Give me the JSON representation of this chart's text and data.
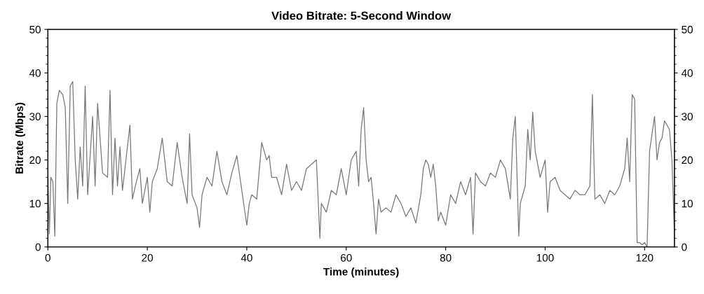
{
  "chart_data": {
    "type": "line",
    "title": "Video Bitrate: 5-Second Window",
    "xlabel": "Time (minutes)",
    "ylabel": "Bitrate (Mbps)",
    "xlim": [
      0,
      126
    ],
    "xticks": [
      0,
      20,
      40,
      60,
      80,
      100,
      120
    ],
    "ylim": [
      0,
      50
    ],
    "yticks": [
      0,
      10,
      20,
      30,
      40,
      50
    ],
    "y2lim": [
      0,
      50
    ],
    "y2ticks": [
      0,
      10,
      20,
      30,
      40,
      50
    ],
    "grid": false,
    "marker": "none",
    "line_style": "solid",
    "series": [
      {
        "color": "#777777",
        "x": [
          0,
          0.3,
          0.6,
          1,
          1.4,
          1.8,
          2.3,
          3,
          3.5,
          4,
          4.5,
          5,
          5.5,
          6,
          6.5,
          7,
          7.5,
          8,
          9,
          9.5,
          10,
          11,
          12,
          12.5,
          13,
          13.5,
          14,
          14.5,
          15,
          16.5,
          17,
          17.8,
          18.5,
          19,
          20,
          20.5,
          21,
          22,
          23,
          24,
          25,
          26,
          27,
          28,
          28.5,
          29,
          30,
          30.5,
          31,
          32,
          33,
          34,
          35,
          36,
          37,
          38,
          39,
          40,
          40.5,
          41,
          42,
          43,
          44,
          44.5,
          45,
          46,
          47,
          48,
          49,
          50,
          51,
          52,
          53,
          54,
          54.7,
          55,
          56,
          57,
          58,
          59,
          60,
          61,
          62,
          62.5,
          63,
          63.5,
          64,
          64.5,
          65,
          65.5,
          66,
          66.5,
          67,
          68,
          69,
          70,
          71,
          72,
          73,
          74,
          75,
          75.5,
          76,
          76.5,
          77,
          77.5,
          78,
          78.5,
          79,
          80,
          81,
          82,
          83,
          84,
          85,
          85.5,
          86,
          87,
          88,
          89,
          90,
          91,
          92,
          93,
          93.5,
          94,
          94.7,
          95,
          96,
          96.5,
          97,
          97.5,
          98,
          99,
          100,
          100.5,
          101,
          102,
          103,
          104,
          105,
          106,
          107,
          108,
          109,
          109.5,
          110,
          111,
          112,
          113,
          114,
          115,
          116,
          116.5,
          117,
          117.5,
          118,
          118.5,
          119,
          119.5,
          120,
          120.5,
          121,
          121.5,
          122,
          122.5,
          123,
          123.5,
          124,
          125,
          125.5,
          126
        ],
        "values": [
          17,
          3,
          16,
          15,
          2.5,
          33,
          36,
          35,
          32,
          10,
          37,
          38,
          20,
          11,
          23,
          14,
          37,
          12,
          30,
          14,
          33,
          17,
          16,
          36,
          12,
          25,
          14,
          23,
          13,
          28,
          11,
          15,
          18,
          10,
          16,
          8,
          15,
          18,
          25,
          15,
          14,
          24,
          16,
          10,
          26,
          12,
          9,
          4.5,
          12,
          16,
          14,
          22,
          15,
          12,
          17,
          21,
          13,
          5,
          10,
          12,
          11,
          24,
          20,
          21,
          16,
          16,
          12,
          19,
          13,
          15,
          13,
          18,
          19,
          20,
          2,
          10,
          8,
          13,
          12,
          18,
          12,
          20,
          22,
          14,
          27,
          32,
          20,
          15,
          16,
          10,
          3,
          11,
          8,
          9,
          8,
          12,
          10,
          7,
          9,
          5.5,
          12,
          18,
          20,
          19,
          16,
          19,
          14,
          6,
          8,
          5,
          12,
          10,
          15,
          12,
          16,
          3,
          17,
          15,
          14,
          17,
          16,
          20,
          18,
          11,
          25,
          30,
          2.5,
          10,
          14,
          27,
          20,
          31,
          22,
          16,
          20,
          8,
          15,
          16,
          13,
          12,
          11,
          13,
          12,
          12,
          14,
          35,
          11,
          12,
          10,
          13,
          12,
          14,
          18,
          25,
          15,
          35,
          34,
          1,
          1,
          0.5,
          1,
          0,
          22,
          26,
          30,
          20,
          24,
          25,
          29,
          27,
          20,
          3
        ]
      }
    ]
  }
}
